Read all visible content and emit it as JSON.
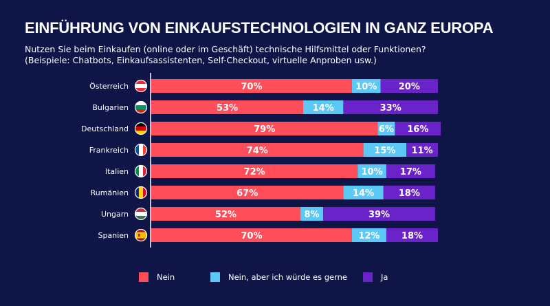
{
  "header": {
    "title": "EINFÜHRUNG VON EINKAUFSTECHNOLOGIEN IN GANZ EUROPA",
    "subtitle_line1": "Nutzen Sie beim Einkaufen (online oder im Geschäft) technische Hilfsmittel oder Funktionen?",
    "subtitle_line2": "(Beispiele: Chatbots, Einkaufsassistenten, Self-Checkout, virtuelle Anproben usw.)"
  },
  "colors": {
    "background": "#0f1546",
    "nein": "#ff4d5a",
    "nein_aber": "#5bc8f5",
    "ja": "#6a22c9",
    "axis": "#ffffff"
  },
  "legend": [
    {
      "label": "Nein",
      "color": "#ff4d5a"
    },
    {
      "label": "Nein, aber ich würde es gerne",
      "color": "#5bc8f5"
    },
    {
      "label": "Ja",
      "color": "#6a22c9"
    }
  ],
  "chart_data": {
    "type": "bar",
    "orientation": "horizontal",
    "stacked": true,
    "title": "EINFÜHRUNG VON EINKAUFSTECHNOLOGIEN IN GANZ EUROPA",
    "categories": [
      "Österreich",
      "Bulgarien",
      "Deutschland",
      "Frankreich",
      "Italien",
      "Rumänien",
      "Ungarn",
      "Spanien"
    ],
    "flags": [
      "flag-austria-icon",
      "flag-bulgaria-icon",
      "flag-germany-icon",
      "flag-france-icon",
      "flag-italy-icon",
      "flag-romania-icon",
      "flag-hungary-icon",
      "flag-spain-icon"
    ],
    "series": [
      {
        "name": "Nein",
        "color": "#ff4d5a",
        "values": [
          70,
          53,
          79,
          74,
          72,
          67,
          52,
          70
        ]
      },
      {
        "name": "Nein, aber ich würde es gerne",
        "color": "#5bc8f5",
        "values": [
          10,
          14,
          6,
          15,
          10,
          14,
          8,
          12
        ]
      },
      {
        "name": "Ja",
        "color": "#6a22c9",
        "values": [
          20,
          33,
          16,
          11,
          17,
          18,
          39,
          18
        ]
      }
    ],
    "value_suffix": "%",
    "xlim": [
      0,
      100
    ],
    "grid": false,
    "legend_position": "bottom"
  }
}
